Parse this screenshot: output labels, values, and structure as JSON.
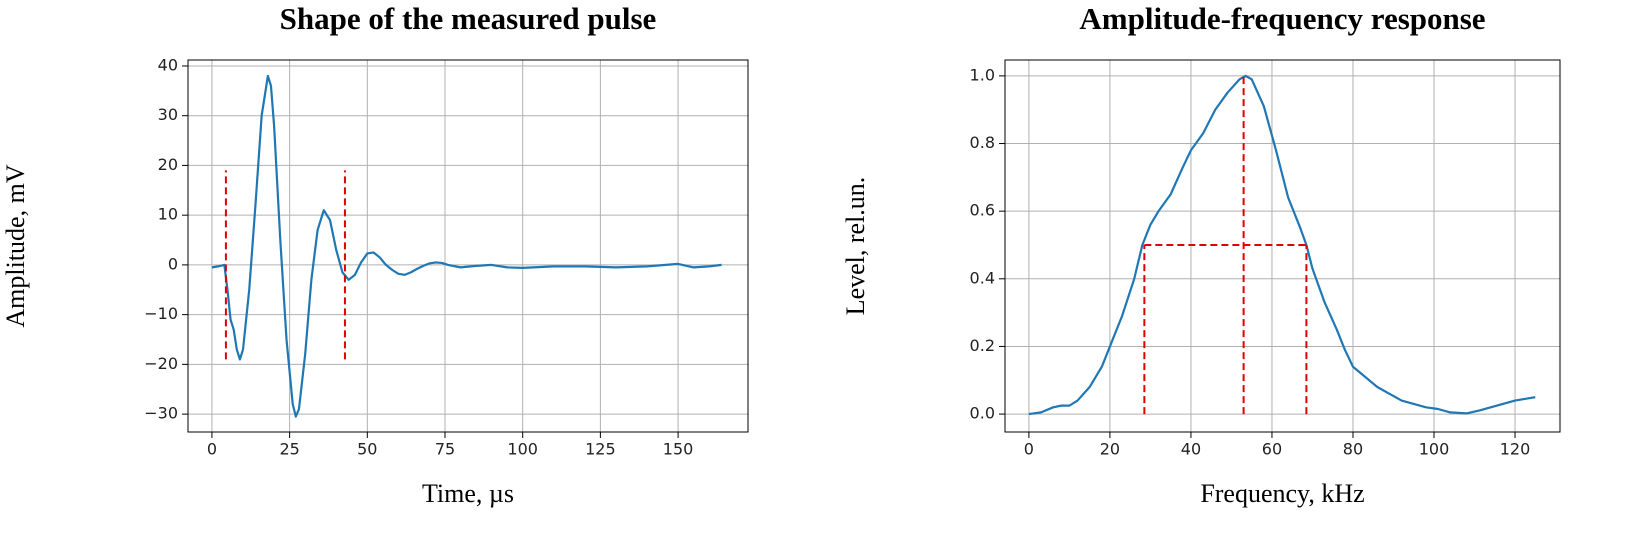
{
  "chart_data": [
    {
      "type": "line",
      "title": "Shape of the measured pulse",
      "x_label": "Time, µs",
      "y_label": "Amplitude, mV",
      "xlim": [
        -7.7,
        172.5
      ],
      "ylim": [
        -33.6,
        41.2
      ],
      "xticks": [
        0,
        25,
        50,
        75,
        100,
        125,
        150
      ],
      "yticks": [
        {
          "value": -30,
          "label": "−30"
        },
        {
          "value": -20,
          "label": "−20"
        },
        {
          "value": -10,
          "label": "−10"
        },
        0,
        10,
        20,
        30,
        40
      ],
      "grid": true,
      "series": [
        {
          "color": "#1f77b4",
          "x": [
            0,
            2,
            4,
            5,
            6,
            7,
            8,
            9,
            10,
            12,
            14,
            16,
            18,
            19,
            20,
            22,
            24,
            26,
            27,
            28,
            30,
            32,
            34,
            36,
            38,
            40,
            42,
            44,
            46,
            48,
            50,
            52,
            54,
            56,
            58,
            60,
            62,
            64,
            66,
            68,
            70,
            72,
            74,
            76,
            80,
            85,
            90,
            95,
            100,
            110,
            120,
            130,
            140,
            150,
            155,
            160,
            164
          ],
          "values": [
            -0.5,
            -0.3,
            0,
            -5,
            -11,
            -13,
            -17,
            -19,
            -17,
            -5,
            12,
            30,
            38,
            36,
            28,
            5,
            -15,
            -28,
            -30.5,
            -29,
            -18,
            -3,
            7,
            11,
            9,
            3,
            -1.5,
            -3,
            -2,
            0.5,
            2.3,
            2.5,
            1.5,
            0,
            -1,
            -1.8,
            -2,
            -1.5,
            -0.8,
            -0.2,
            0.3,
            0.5,
            0.4,
            0,
            -0.5,
            -0.2,
            0,
            -0.5,
            -0.6,
            -0.3,
            -0.3,
            -0.5,
            -0.3,
            0.2,
            -0.5,
            -0.3,
            0
          ]
        }
      ],
      "reference_lines": [
        {
          "color": "#e00000",
          "x": [
            4.5,
            4.5
          ],
          "values": [
            -19,
            19
          ]
        },
        {
          "color": "#e00000",
          "x": [
            42.8,
            42.8
          ],
          "values": [
            -19,
            19
          ]
        }
      ]
    },
    {
      "type": "line",
      "title": "Amplitude-frequency response",
      "x_label": "Frequency, kHz",
      "y_label": "Level, rel.un.",
      "xlim": [
        -5.9,
        131.1
      ],
      "ylim": [
        -0.053,
        1.047
      ],
      "xticks": [
        0,
        20,
        40,
        60,
        80,
        100,
        120
      ],
      "yticks": [
        {
          "value": 0,
          "label": "0.0"
        },
        {
          "value": 0.2,
          "label": "0.2"
        },
        {
          "value": 0.4,
          "label": "0.4"
        },
        {
          "value": 0.6,
          "label": "0.6"
        },
        {
          "value": 0.8,
          "label": "0.8"
        },
        {
          "value": 1,
          "label": "1.0"
        }
      ],
      "grid": true,
      "series": [
        {
          "color": "#1f77b4",
          "x": [
            0,
            3,
            6,
            8,
            10,
            12,
            15,
            18,
            20,
            23,
            26,
            28,
            30,
            32,
            35,
            38,
            40,
            43,
            46,
            49,
            52,
            53.5,
            55,
            58,
            61,
            64,
            67,
            68.5,
            70,
            73,
            76,
            78,
            80,
            83,
            86,
            89,
            92,
            95,
            98,
            101,
            104,
            108,
            111,
            114,
            117,
            120,
            125
          ],
          "values": [
            0,
            0.005,
            0.02,
            0.025,
            0.025,
            0.04,
            0.08,
            0.14,
            0.2,
            0.29,
            0.4,
            0.5,
            0.56,
            0.6,
            0.65,
            0.73,
            0.78,
            0.83,
            0.9,
            0.95,
            0.99,
            1.0,
            0.99,
            0.91,
            0.78,
            0.64,
            0.55,
            0.5,
            0.43,
            0.33,
            0.25,
            0.19,
            0.14,
            0.11,
            0.08,
            0.06,
            0.04,
            0.03,
            0.02,
            0.015,
            0.005,
            0.002,
            0.01,
            0.02,
            0.03,
            0.04,
            0.05
          ]
        }
      ],
      "reference_lines": [
        {
          "color": "#e00000",
          "x": [
            28.5,
            28.5
          ],
          "values": [
            0,
            0.5
          ]
        },
        {
          "color": "#e00000",
          "x": [
            53,
            53
          ],
          "values": [
            0,
            1.0
          ]
        },
        {
          "color": "#e00000",
          "x": [
            68.5,
            68.5
          ],
          "values": [
            0,
            0.5
          ]
        },
        {
          "color": "#e00000",
          "x": [
            28.5,
            68.5
          ],
          "values": [
            0.5,
            0.5
          ]
        }
      ]
    }
  ]
}
